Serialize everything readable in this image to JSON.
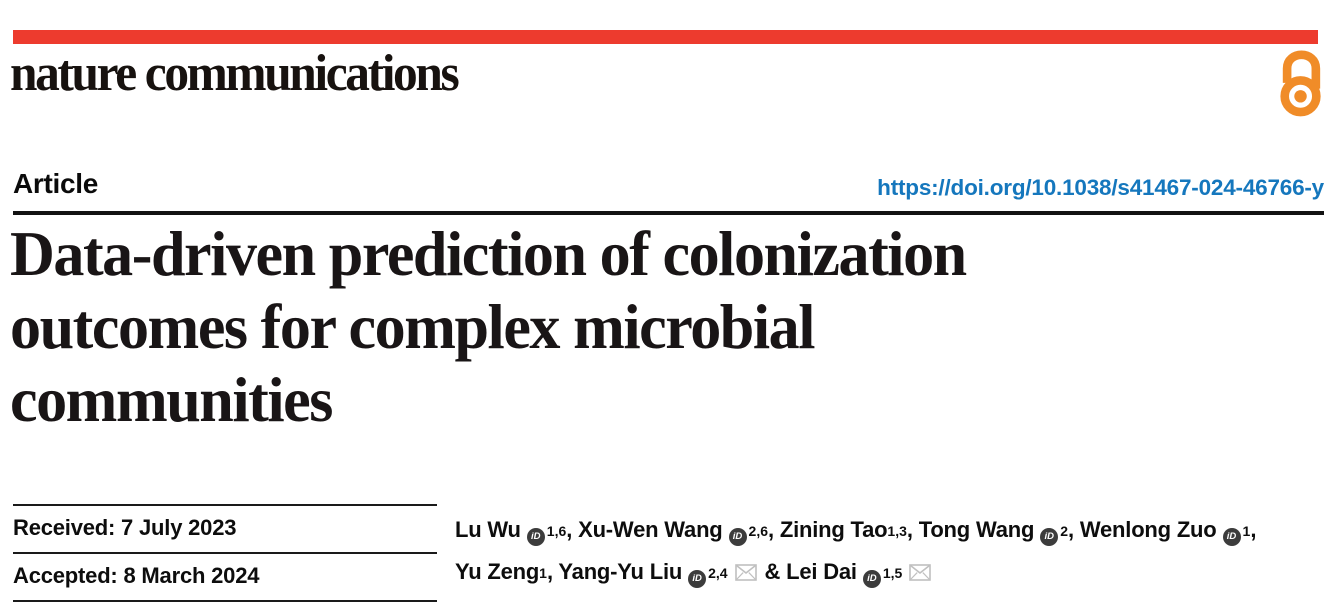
{
  "masthead": {
    "journal_name": "nature communications",
    "brand_bar_color": "#ed3b2e",
    "open_access_color": "#f08c28"
  },
  "article_header": {
    "kicker": "Article",
    "doi_link": "https://doi.org/10.1038/s41467-024-46766-y",
    "doi_color": "#1577bd",
    "title": "Data-driven prediction of colonization outcomes for complex microbial communities",
    "title_lines": [
      "Data-driven prediction of colonization",
      "outcomes for complex microbial",
      "communities"
    ]
  },
  "dates": {
    "received": "Received: 7 July 2023",
    "accepted": "Accepted: 8 March 2024"
  },
  "authors": {
    "orcid_icon_label": "iD",
    "lines": [
      [
        {
          "t": "Lu Wu"
        },
        {
          "icon": "orcid"
        },
        {
          "sup": "1,6"
        },
        {
          "t": ", Xu-Wen Wang"
        },
        {
          "icon": "orcid"
        },
        {
          "sup": "2,6"
        },
        {
          "t": ", Zining Tao"
        },
        {
          "sup": "1,3"
        },
        {
          "t": ", Tong Wang"
        },
        {
          "icon": "orcid"
        },
        {
          "sup": "2"
        },
        {
          "t": ", Wenlong Zuo"
        },
        {
          "icon": "orcid"
        },
        {
          "sup": "1"
        },
        {
          "t": ","
        }
      ],
      [
        {
          "t": "Yu Zeng"
        },
        {
          "sup": "1"
        },
        {
          "t": ", Yang-Yu Liu"
        },
        {
          "icon": "orcid"
        },
        {
          "sup": "2,4"
        },
        {
          "icon": "mail"
        },
        {
          "t": " & Lei Dai"
        },
        {
          "icon": "orcid"
        },
        {
          "sup": "1,5"
        },
        {
          "icon": "mail"
        }
      ]
    ]
  }
}
